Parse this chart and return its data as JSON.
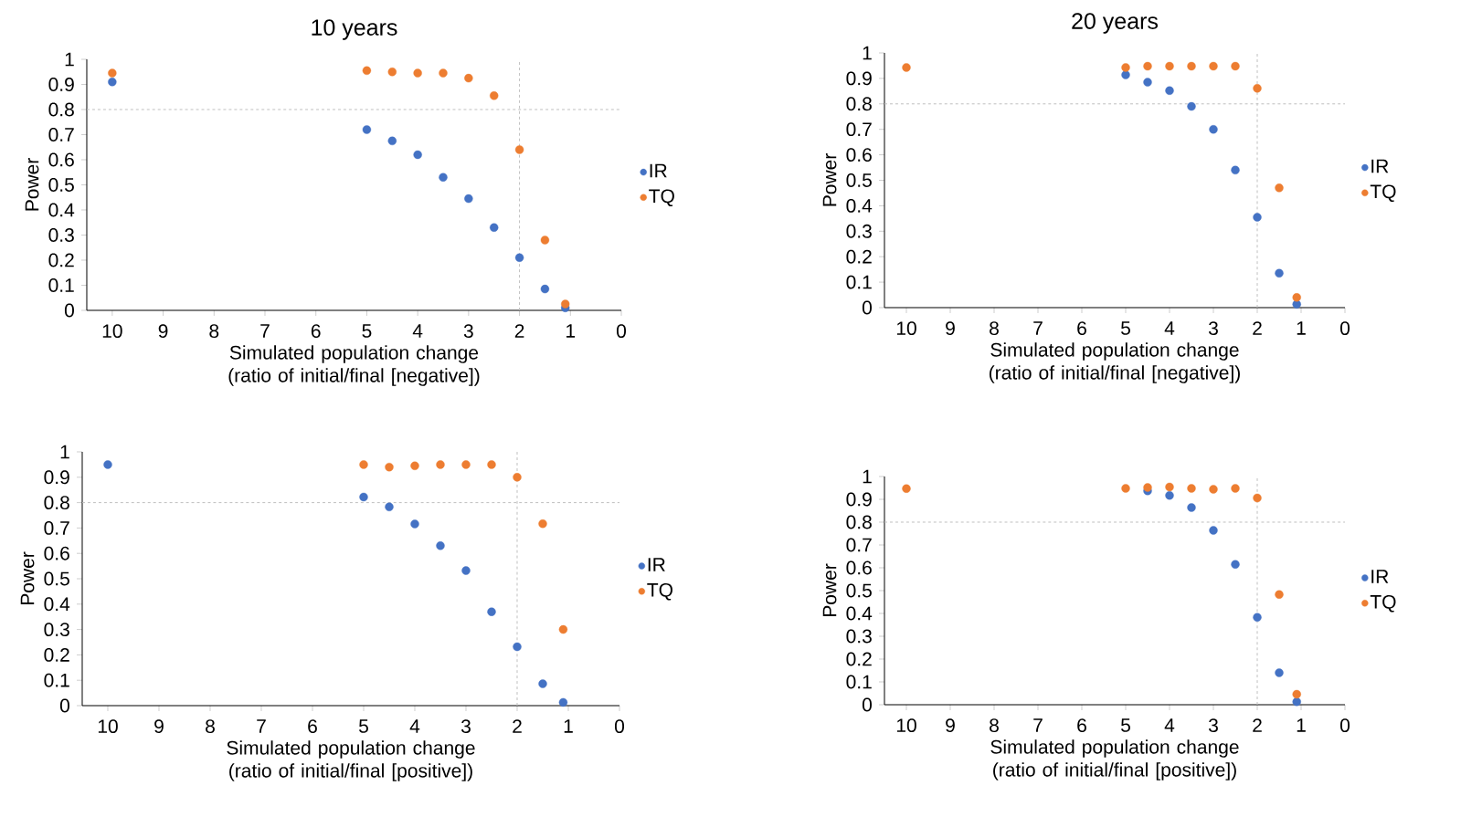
{
  "chart_data": [
    {
      "type": "scatter",
      "title": "10 years",
      "xlabel": "Simulated population change (ratio of initial/final [negative])",
      "ylabel": "Power",
      "x": [
        10,
        5,
        4.5,
        4,
        3.5,
        3,
        2.5,
        2,
        1.5,
        1.1
      ],
      "series": [
        {
          "name": "IR",
          "color": "#4472c4",
          "values": [
            0.91,
            0.72,
            0.675,
            0.62,
            0.53,
            0.445,
            0.33,
            0.21,
            0.085,
            0.01
          ]
        },
        {
          "name": "TQ",
          "color": "#ed7d31",
          "values": [
            0.945,
            0.955,
            0.95,
            0.945,
            0.945,
            0.925,
            0.855,
            0.64,
            0.28,
            0.025
          ]
        }
      ],
      "xlim": [
        10.5,
        0
      ],
      "xticks": [
        10,
        9,
        8,
        7,
        6,
        5,
        4,
        3,
        2,
        1,
        0
      ],
      "ylim": [
        0,
        1
      ],
      "yticks": [
        0,
        0.1,
        0.2,
        0.3,
        0.4,
        0.5,
        0.6,
        0.7,
        0.8,
        0.9,
        1
      ],
      "ref_lines": [
        {
          "axis": "y",
          "value": 0.8,
          "color": "#bfbfbf",
          "line_style": "dashed"
        },
        {
          "axis": "x",
          "value": 2,
          "color": "#bfbfbf",
          "line_style": "dashed"
        }
      ],
      "legend": "right",
      "marker": "circle"
    },
    {
      "type": "scatter",
      "title": "20 years",
      "xlabel": "Simulated population change (ratio of initial/final [negative])",
      "ylabel": "Power",
      "x": [
        10,
        5,
        4.5,
        4,
        3.5,
        3,
        2.5,
        2,
        1.5,
        1.1
      ],
      "series": [
        {
          "name": "IR",
          "color": "#4472c4",
          "values": [
            null,
            0.914,
            0.885,
            0.852,
            0.79,
            0.7,
            0.54,
            0.355,
            0.135,
            0.013
          ]
        },
        {
          "name": "TQ",
          "color": "#ed7d31",
          "values": [
            0.943,
            0.943,
            0.948,
            0.948,
            0.948,
            0.948,
            0.948,
            0.861,
            0.47,
            0.04
          ]
        }
      ],
      "xlim": [
        10.5,
        0
      ],
      "xticks": [
        10,
        9,
        8,
        7,
        6,
        5,
        4,
        3,
        2,
        1,
        0
      ],
      "ylim": [
        0,
        1
      ],
      "yticks": [
        0,
        0.1,
        0.2,
        0.3,
        0.4,
        0.5,
        0.6,
        0.7,
        0.8,
        0.9,
        1
      ],
      "ref_lines": [
        {
          "axis": "y",
          "value": 0.8,
          "color": "#bfbfbf",
          "line_style": "dashed"
        },
        {
          "axis": "x",
          "value": 2,
          "color": "#bfbfbf",
          "line_style": "dashed"
        }
      ],
      "legend": "right",
      "marker": "circle"
    },
    {
      "type": "scatter",
      "xlabel": "Simulated population change (ratio of initial/final [positive])",
      "ylabel": "Power",
      "x": [
        10,
        5,
        4.5,
        4,
        3.5,
        3,
        2.5,
        2,
        1.5,
        1.1
      ],
      "series": [
        {
          "name": "IR",
          "color": "#4472c4",
          "values": [
            0.95,
            0.822,
            0.783,
            0.716,
            0.63,
            0.532,
            0.37,
            0.232,
            0.086,
            0.013
          ]
        },
        {
          "name": "TQ",
          "color": "#ed7d31",
          "values": [
            null,
            0.95,
            0.94,
            0.945,
            0.95,
            0.95,
            0.95,
            0.9,
            0.717,
            0.3
          ]
        }
      ],
      "xlim": [
        10.5,
        0
      ],
      "xticks": [
        10,
        9,
        8,
        7,
        6,
        5,
        4,
        3,
        2,
        1,
        0
      ],
      "ylim": [
        0,
        1
      ],
      "yticks": [
        0,
        0.1,
        0.2,
        0.3,
        0.4,
        0.5,
        0.6,
        0.7,
        0.8,
        0.9,
        1
      ],
      "ref_lines": [
        {
          "axis": "y",
          "value": 0.8,
          "color": "#bfbfbf",
          "line_style": "dashed"
        },
        {
          "axis": "x",
          "value": 2,
          "color": "#bfbfbf",
          "line_style": "dashed"
        }
      ],
      "legend": "right",
      "marker": "circle"
    },
    {
      "type": "scatter",
      "xlabel": "Simulated population change (ratio of initial/final [positive])",
      "ylabel": "Power",
      "x": [
        10,
        5,
        4.5,
        4,
        3.5,
        3,
        2.5,
        2,
        1.5,
        1.1
      ],
      "series": [
        {
          "name": "IR",
          "color": "#4472c4",
          "values": [
            null,
            null,
            0.937,
            0.917,
            0.864,
            0.764,
            0.615,
            0.383,
            0.14,
            0.013
          ]
        },
        {
          "name": "TQ",
          "color": "#ed7d31",
          "values": [
            0.947,
            0.948,
            0.952,
            0.954,
            0.948,
            0.944,
            0.948,
            0.906,
            0.483,
            0.046
          ]
        }
      ],
      "xlim": [
        10.5,
        0
      ],
      "xticks": [
        10,
        9,
        8,
        7,
        6,
        5,
        4,
        3,
        2,
        1,
        0
      ],
      "ylim": [
        0,
        1
      ],
      "yticks": [
        0,
        0.1,
        0.2,
        0.3,
        0.4,
        0.5,
        0.6,
        0.7,
        0.8,
        0.9,
        1
      ],
      "ref_lines": [
        {
          "axis": "y",
          "value": 0.8,
          "color": "#bfbfbf",
          "line_style": "dashed"
        },
        {
          "axis": "x",
          "value": 2,
          "color": "#bfbfbf",
          "line_style": "dashed"
        }
      ],
      "legend": "right",
      "marker": "circle"
    }
  ]
}
